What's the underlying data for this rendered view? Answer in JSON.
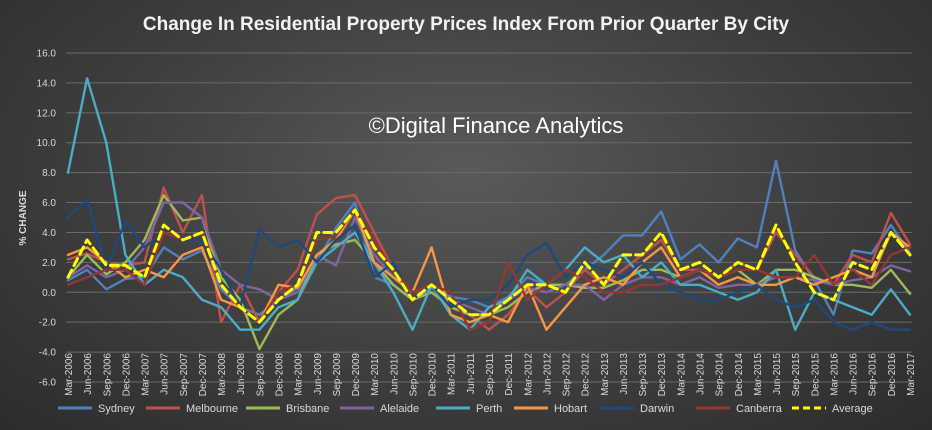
{
  "chart_data": {
    "type": "line",
    "title": "Change In Residential Property Prices Index From Prior Quarter By City",
    "watermark": "©Digital Finance Analytics",
    "ylabel": "% CHANGE",
    "xlabel": "",
    "ylim": [
      -6,
      16
    ],
    "yticks": [
      "16.0",
      "14.0",
      "12.0",
      "10.0",
      "8.0",
      "6.0",
      "4.0",
      "2.0",
      "0.0",
      "-2.0",
      "-4.0",
      "-6.0"
    ],
    "grid": true,
    "legend_position": "bottom",
    "categories": [
      "Mar-2006",
      "Jun-2006",
      "Sep-2006",
      "Dec-2006",
      "Mar-2007",
      "Jun-2007",
      "Sep-2007",
      "Dec-2007",
      "Mar-2008",
      "Jun-2008",
      "Sep-2008",
      "Dec-2008",
      "Mar-2009",
      "Jun-2009",
      "Sep-2009",
      "Dec-2009",
      "Mar-2010",
      "Jun-2010",
      "Sep-2010",
      "Dec-2010",
      "Mar-2011",
      "Jun-2011",
      "Sep-2011",
      "Dec-2011",
      "Mar-2012",
      "Jun-2012",
      "Sep-2012",
      "Dec-2012",
      "Mar-2013",
      "Jun-2013",
      "Sep-2013",
      "Dec-2013",
      "Mar-2014",
      "Jun-2014",
      "Sep-2014",
      "Dec-2014",
      "Mar-2015",
      "Jun-2015",
      "Sep-2015",
      "Dec-2015",
      "Mar-2016",
      "Jun-2016",
      "Sep-2016",
      "Dec-2016",
      "Mar-2017"
    ],
    "series": [
      {
        "name": "Sydney",
        "color": "#4f81bd",
        "dashed": false,
        "values": [
          0.8,
          1.5,
          0.2,
          0.9,
          1.0,
          3.0,
          2.2,
          2.8,
          0.2,
          -1.0,
          -1.5,
          -0.5,
          0.3,
          2.0,
          4.3,
          6.0,
          1.0,
          0.5,
          -0.5,
          0.3,
          -0.3,
          -0.5,
          -1.0,
          -0.3,
          1.0,
          0.5,
          0.5,
          1.5,
          2.5,
          3.8,
          3.8,
          5.4,
          2.2,
          3.2,
          2.0,
          3.6,
          3.0,
          8.8,
          2.8,
          0.8,
          -1.5,
          2.8,
          2.6,
          4.5,
          2.6
        ]
      },
      {
        "name": "Melbourne",
        "color": "#c0504d",
        "dashed": false,
        "values": [
          2.2,
          2.6,
          2.0,
          1.8,
          2.0,
          7.0,
          4.0,
          6.5,
          -2.0,
          0.5,
          -2.0,
          0.0,
          1.5,
          5.2,
          6.3,
          6.5,
          4.0,
          1.5,
          -0.5,
          0.0,
          -1.0,
          -1.5,
          -2.5,
          -1.5,
          0.2,
          -1.0,
          0.0,
          1.5,
          0.5,
          1.5,
          2.5,
          3.5,
          1.5,
          1.5,
          1.0,
          2.0,
          1.5,
          4.0,
          2.5,
          1.0,
          0.5,
          2.5,
          2.0,
          5.3,
          3.2
        ]
      },
      {
        "name": "Brisbane",
        "color": "#9bbb59",
        "dashed": false,
        "values": [
          1.0,
          2.5,
          1.2,
          2.0,
          3.5,
          6.5,
          4.8,
          5.0,
          1.0,
          -0.5,
          -3.8,
          -1.5,
          -0.5,
          2.5,
          3.2,
          3.5,
          2.0,
          0.5,
          -0.5,
          0.0,
          -1.0,
          -1.5,
          -1.5,
          -1.0,
          0.0,
          0.5,
          0.5,
          0.3,
          0.3,
          0.8,
          1.5,
          1.5,
          1.0,
          1.5,
          1.0,
          1.5,
          0.5,
          1.5,
          1.5,
          1.0,
          0.5,
          0.5,
          0.3,
          1.5,
          -0.1
        ]
      },
      {
        "name": "Alelaide",
        "color": "#8064a2",
        "dashed": false,
        "values": [
          1.0,
          1.8,
          1.0,
          1.5,
          3.0,
          6.0,
          6.0,
          5.0,
          1.5,
          0.5,
          0.2,
          -0.5,
          0.0,
          2.5,
          1.8,
          5.0,
          2.5,
          1.0,
          0.0,
          0.5,
          -0.5,
          -1.0,
          -1.5,
          -0.5,
          0.3,
          0.0,
          0.5,
          0.5,
          -0.5,
          0.5,
          1.0,
          1.0,
          0.5,
          1.0,
          0.3,
          0.5,
          0.5,
          1.0,
          1.0,
          0.8,
          0.5,
          0.8,
          1.0,
          1.8,
          1.4
        ]
      },
      {
        "name": "Perth",
        "color": "#4bacc6",
        "dashed": false,
        "values": [
          8.0,
          14.3,
          10.0,
          2.5,
          0.5,
          1.5,
          1.0,
          -0.5,
          -1.0,
          -2.5,
          -2.5,
          -1.0,
          -0.5,
          2.0,
          3.0,
          4.0,
          2.0,
          0.0,
          -2.5,
          0.5,
          -1.5,
          -2.5,
          -1.0,
          -0.5,
          1.5,
          0.5,
          1.5,
          3.0,
          2.0,
          2.5,
          1.0,
          2.0,
          0.5,
          0.5,
          0.0,
          -0.5,
          0.0,
          1.5,
          -2.5,
          0.0,
          -0.5,
          -1.0,
          -1.5,
          0.2,
          -1.5
        ]
      },
      {
        "name": "Hobart",
        "color": "#f79646",
        "dashed": false,
        "values": [
          2.5,
          3.0,
          2.0,
          1.0,
          1.5,
          1.0,
          2.5,
          3.0,
          -0.5,
          -1.0,
          -2.0,
          0.5,
          0.3,
          2.5,
          3.5,
          5.5,
          2.0,
          1.0,
          0.0,
          3.0,
          -1.5,
          -2.0,
          -1.5,
          -2.0,
          0.5,
          -2.5,
          -1.0,
          0.5,
          1.0,
          0.5,
          2.0,
          3.0,
          1.0,
          1.5,
          0.5,
          1.0,
          0.5,
          0.5,
          1.0,
          0.5,
          1.0,
          1.5,
          1.0,
          4.0,
          3.0
        ]
      },
      {
        "name": "Darwin",
        "color": "#1f497d",
        "dashed": false,
        "values": [
          5.0,
          6.2,
          1.5,
          4.8,
          3.0,
          4.0,
          3.5,
          3.5,
          1.5,
          -1.0,
          4.2,
          3.0,
          3.5,
          2.0,
          3.5,
          4.5,
          1.0,
          2.0,
          -0.5,
          0.5,
          -1.0,
          -0.5,
          -0.5,
          0.5,
          2.5,
          3.3,
          1.0,
          2.0,
          1.5,
          1.0,
          2.0,
          0.5,
          0.0,
          -0.5,
          -0.5,
          0.0,
          0.5,
          -0.5,
          -1.0,
          -0.5,
          -2.0,
          -2.5,
          -2.0,
          -2.5,
          -2.5
        ]
      },
      {
        "name": "Canberra",
        "color": "#943634",
        "dashed": false,
        "values": [
          0.5,
          1.0,
          1.5,
          1.5,
          0.5,
          4.0,
          3.5,
          4.0,
          0.5,
          -1.0,
          -2.0,
          0.0,
          0.5,
          3.5,
          3.8,
          5.5,
          3.5,
          1.5,
          0.0,
          0.5,
          0.0,
          -2.5,
          -2.0,
          2.0,
          -0.5,
          0.5,
          1.5,
          1.0,
          0.0,
          0.0,
          0.5,
          0.5,
          1.0,
          1.5,
          1.0,
          1.5,
          1.5,
          1.0,
          1.0,
          2.5,
          0.5,
          1.5,
          0.5,
          2.5,
          3.0
        ]
      },
      {
        "name": "Average",
        "color": "#ffff00",
        "dashed": true,
        "values": [
          1.0,
          3.5,
          1.8,
          1.8,
          1.0,
          4.5,
          3.5,
          4.0,
          0.5,
          -1.0,
          -2.0,
          -0.5,
          0.5,
          4.0,
          4.0,
          5.5,
          3.0,
          1.5,
          -0.5,
          0.5,
          -0.5,
          -1.5,
          -1.5,
          -0.5,
          0.5,
          0.5,
          0.0,
          2.0,
          0.5,
          2.5,
          2.5,
          4.0,
          1.5,
          2.0,
          1.0,
          2.0,
          1.5,
          4.5,
          2.0,
          0.0,
          -0.5,
          2.0,
          1.5,
          4.0,
          2.5
        ]
      }
    ]
  }
}
